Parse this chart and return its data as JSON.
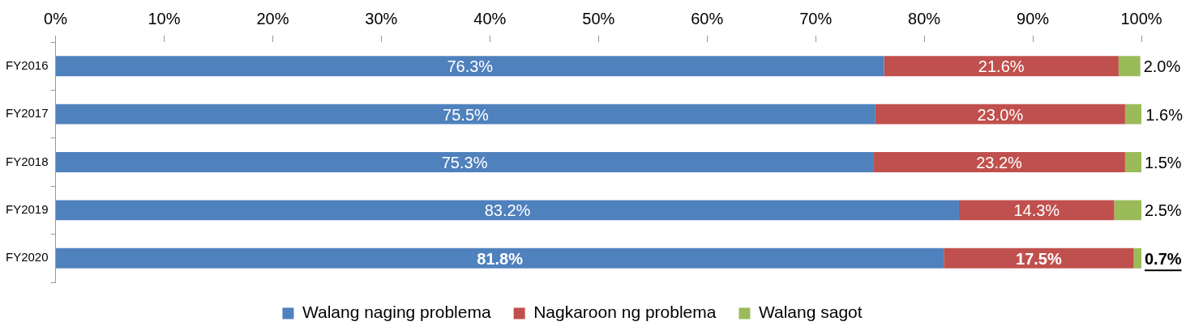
{
  "chart_data": {
    "type": "bar",
    "orientation": "horizontal",
    "stacked": true,
    "categories": [
      "FY2016",
      "FY2017",
      "FY2018",
      "FY2019",
      "FY2020"
    ],
    "series": [
      {
        "name": "Walang naging problema",
        "color": "#4f81bd",
        "values": [
          76.3,
          75.5,
          75.3,
          83.2,
          81.8
        ],
        "value_labels": [
          "76.3%",
          "75.5%",
          "75.3%",
          "83.2%",
          "81.8%"
        ]
      },
      {
        "name": "Nagkaroon ng problema",
        "color": "#c0504d",
        "values": [
          21.6,
          23.0,
          23.2,
          14.3,
          17.5
        ],
        "value_labels": [
          "21.6%",
          "23.0%",
          "23.2%",
          "14.3%",
          "17.5%"
        ]
      },
      {
        "name": "Walang sagot",
        "color": "#9bbb59",
        "values": [
          2.0,
          1.6,
          1.5,
          2.5,
          0.7
        ],
        "value_labels": [
          "2.0%",
          "1.6%",
          "1.5%",
          "2.5%",
          "0.7%"
        ]
      }
    ],
    "xlim": [
      0,
      100
    ],
    "xticks": [
      {
        "value": 0,
        "label": "0%"
      },
      {
        "value": 10,
        "label": "10%"
      },
      {
        "value": 20,
        "label": "20%"
      },
      {
        "value": 30,
        "label": "30%"
      },
      {
        "value": 40,
        "label": "40%"
      },
      {
        "value": 50,
        "label": "50%"
      },
      {
        "value": 60,
        "label": "60%"
      },
      {
        "value": 70,
        "label": "70%"
      },
      {
        "value": 80,
        "label": "80%"
      },
      {
        "value": 90,
        "label": "90%"
      },
      {
        "value": 100,
        "label": "100%"
      }
    ],
    "legend": "bottom",
    "grid": false
  }
}
